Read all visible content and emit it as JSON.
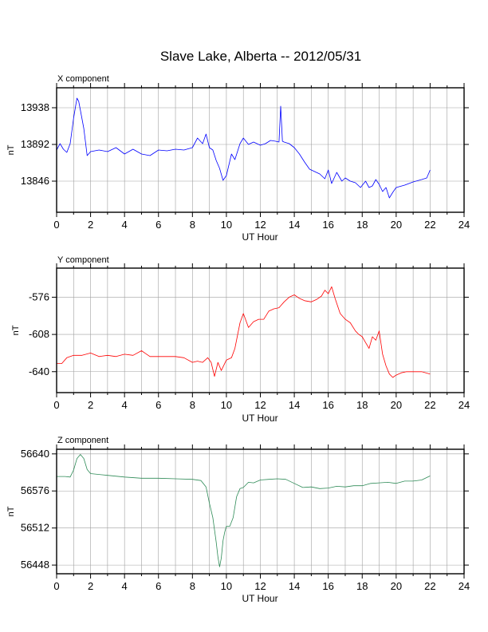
{
  "title": "Slave Lake, Alberta -- 2012/05/31",
  "chart_data": [
    {
      "type": "line",
      "panel_label": "X component",
      "xlabel": "UT Hour",
      "ylabel": "nT",
      "xlim": [
        0,
        24
      ],
      "ylim": [
        13807,
        13963
      ],
      "xticks": [
        0,
        2,
        4,
        6,
        8,
        10,
        12,
        14,
        16,
        18,
        20,
        22,
        24
      ],
      "yticks": [
        13846,
        13892,
        13938
      ],
      "grid": true,
      "color": "#0000ff",
      "series": [
        {
          "x": [
            0,
            0.2,
            0.4,
            0.6,
            0.8,
            1.0,
            1.2,
            1.3,
            1.4,
            1.6,
            1.8,
            2.0,
            2.5,
            3.0,
            3.5,
            4.0,
            4.5,
            5.0,
            5.5,
            6.0,
            6.5,
            7.0,
            7.5,
            8.0,
            8.3,
            8.6,
            8.8,
            9.0,
            9.2,
            9.4,
            9.6,
            9.8,
            10.0,
            10.3,
            10.5,
            10.8,
            11.0,
            11.3,
            11.6,
            12.0,
            12.3,
            12.6,
            12.9,
            13.1,
            13.2,
            13.3,
            13.4,
            13.7,
            14.0,
            14.3,
            14.6,
            14.9,
            15.2,
            15.5,
            15.8,
            16.0,
            16.2,
            16.5,
            16.8,
            17.0,
            17.3,
            17.6,
            17.9,
            18.2,
            18.4,
            18.6,
            18.8,
            19.0,
            19.2,
            19.4,
            19.6,
            19.8,
            20.0,
            20.5,
            21.0,
            21.5,
            21.8,
            22.0
          ],
          "y": [
            13885,
            13893,
            13886,
            13882,
            13893,
            13925,
            13950,
            13946,
            13935,
            13912,
            13878,
            13883,
            13885,
            13883,
            13888,
            13880,
            13886,
            13880,
            13878,
            13885,
            13884,
            13886,
            13885,
            13888,
            13900,
            13893,
            13905,
            13888,
            13885,
            13872,
            13862,
            13847,
            13853,
            13880,
            13873,
            13893,
            13900,
            13892,
            13895,
            13891,
            13893,
            13897,
            13896,
            13895,
            13940,
            13896,
            13895,
            13893,
            13888,
            13880,
            13870,
            13861,
            13858,
            13855,
            13849,
            13860,
            13843,
            13857,
            13846,
            13850,
            13846,
            13844,
            13838,
            13846,
            13838,
            13840,
            13848,
            13842,
            13833,
            13838,
            13825,
            13832,
            13838,
            13841,
            13845,
            13848,
            13850,
            13860
          ]
        }
      ]
    },
    {
      "type": "line",
      "panel_label": "Y component",
      "xlabel": "UT Hour",
      "ylabel": "nT",
      "xlim": [
        0,
        24
      ],
      "ylim": [
        -658,
        -551
      ],
      "xticks": [
        0,
        2,
        4,
        6,
        8,
        10,
        12,
        14,
        16,
        18,
        20,
        22,
        24
      ],
      "yticks": [
        -640,
        -608,
        -576
      ],
      "grid": true,
      "color": "#ff0000",
      "series": [
        {
          "x": [
            0,
            0.3,
            0.6,
            1.0,
            1.5,
            2.0,
            2.5,
            3.0,
            3.5,
            4.0,
            4.5,
            5.0,
            5.2,
            5.5,
            6.0,
            6.5,
            7.0,
            7.5,
            8.0,
            8.3,
            8.6,
            8.9,
            9.1,
            9.3,
            9.5,
            9.7,
            10.0,
            10.3,
            10.5,
            10.8,
            11.0,
            11.3,
            11.6,
            11.9,
            12.2,
            12.5,
            12.8,
            13.1,
            13.4,
            13.7,
            14.0,
            14.3,
            14.6,
            15.0,
            15.3,
            15.6,
            15.8,
            16.0,
            16.2,
            16.4,
            16.7,
            17.0,
            17.3,
            17.6,
            17.8,
            18.0,
            18.2,
            18.4,
            18.6,
            18.8,
            19.0,
            19.2,
            19.4,
            19.6,
            19.8,
            20.0,
            20.3,
            20.6,
            21.0,
            21.5,
            22.0
          ],
          "y": [
            -633,
            -633,
            -628,
            -626,
            -626,
            -624,
            -627,
            -626,
            -627,
            -625,
            -626,
            -622,
            -624,
            -627,
            -627,
            -627,
            -627,
            -628,
            -632,
            -631,
            -632,
            -628,
            -632,
            -644,
            -632,
            -639,
            -630,
            -628,
            -620,
            -598,
            -590,
            -602,
            -597,
            -595,
            -595,
            -588,
            -586,
            -585,
            -580,
            -576,
            -574,
            -577,
            -579,
            -580,
            -578,
            -575,
            -570,
            -573,
            -567,
            -577,
            -590,
            -595,
            -598,
            -605,
            -608,
            -610,
            -615,
            -620,
            -610,
            -613,
            -605,
            -625,
            -635,
            -642,
            -645,
            -643,
            -641,
            -640,
            -640,
            -640,
            -642
          ]
        }
      ]
    },
    {
      "type": "line",
      "panel_label": "Z component",
      "xlabel": "UT Hour",
      "ylabel": "nT",
      "xlim": [
        0,
        24
      ],
      "ylim": [
        56433,
        56648
      ],
      "xticks": [
        0,
        2,
        4,
        6,
        8,
        10,
        12,
        14,
        16,
        18,
        20,
        22,
        24
      ],
      "yticks": [
        56448,
        56512,
        56576,
        56640
      ],
      "grid": true,
      "color": "#2e8b57",
      "series": [
        {
          "x": [
            0,
            0.5,
            0.8,
            1.0,
            1.2,
            1.4,
            1.6,
            1.8,
            2.0,
            3.0,
            4.0,
            5.0,
            6.0,
            7.0,
            8.0,
            8.5,
            8.8,
            9.0,
            9.2,
            9.4,
            9.5,
            9.6,
            9.7,
            9.8,
            9.9,
            10.0,
            10.2,
            10.4,
            10.6,
            10.8,
            11.0,
            11.3,
            11.6,
            12.0,
            12.5,
            13.0,
            13.5,
            14.0,
            14.5,
            15.0,
            15.5,
            16.0,
            16.5,
            17.0,
            17.5,
            18.0,
            18.5,
            19.0,
            19.5,
            20.0,
            20.5,
            21.0,
            21.5,
            22.0
          ],
          "y": [
            56601,
            56601,
            56600,
            56612,
            56632,
            56639,
            56632,
            56613,
            56606,
            56603,
            56600,
            56598,
            56598,
            56597,
            56596,
            56594,
            56583,
            56555,
            56530,
            56488,
            56462,
            56445,
            56460,
            56490,
            56505,
            56515,
            56515,
            56530,
            56566,
            56580,
            56582,
            56591,
            56590,
            56595,
            56596,
            56597,
            56596,
            56589,
            56582,
            56583,
            56580,
            56581,
            56584,
            56583,
            56585,
            56585,
            56589,
            56590,
            56591,
            56589,
            56593,
            56593,
            56595,
            56602
          ]
        }
      ]
    }
  ]
}
